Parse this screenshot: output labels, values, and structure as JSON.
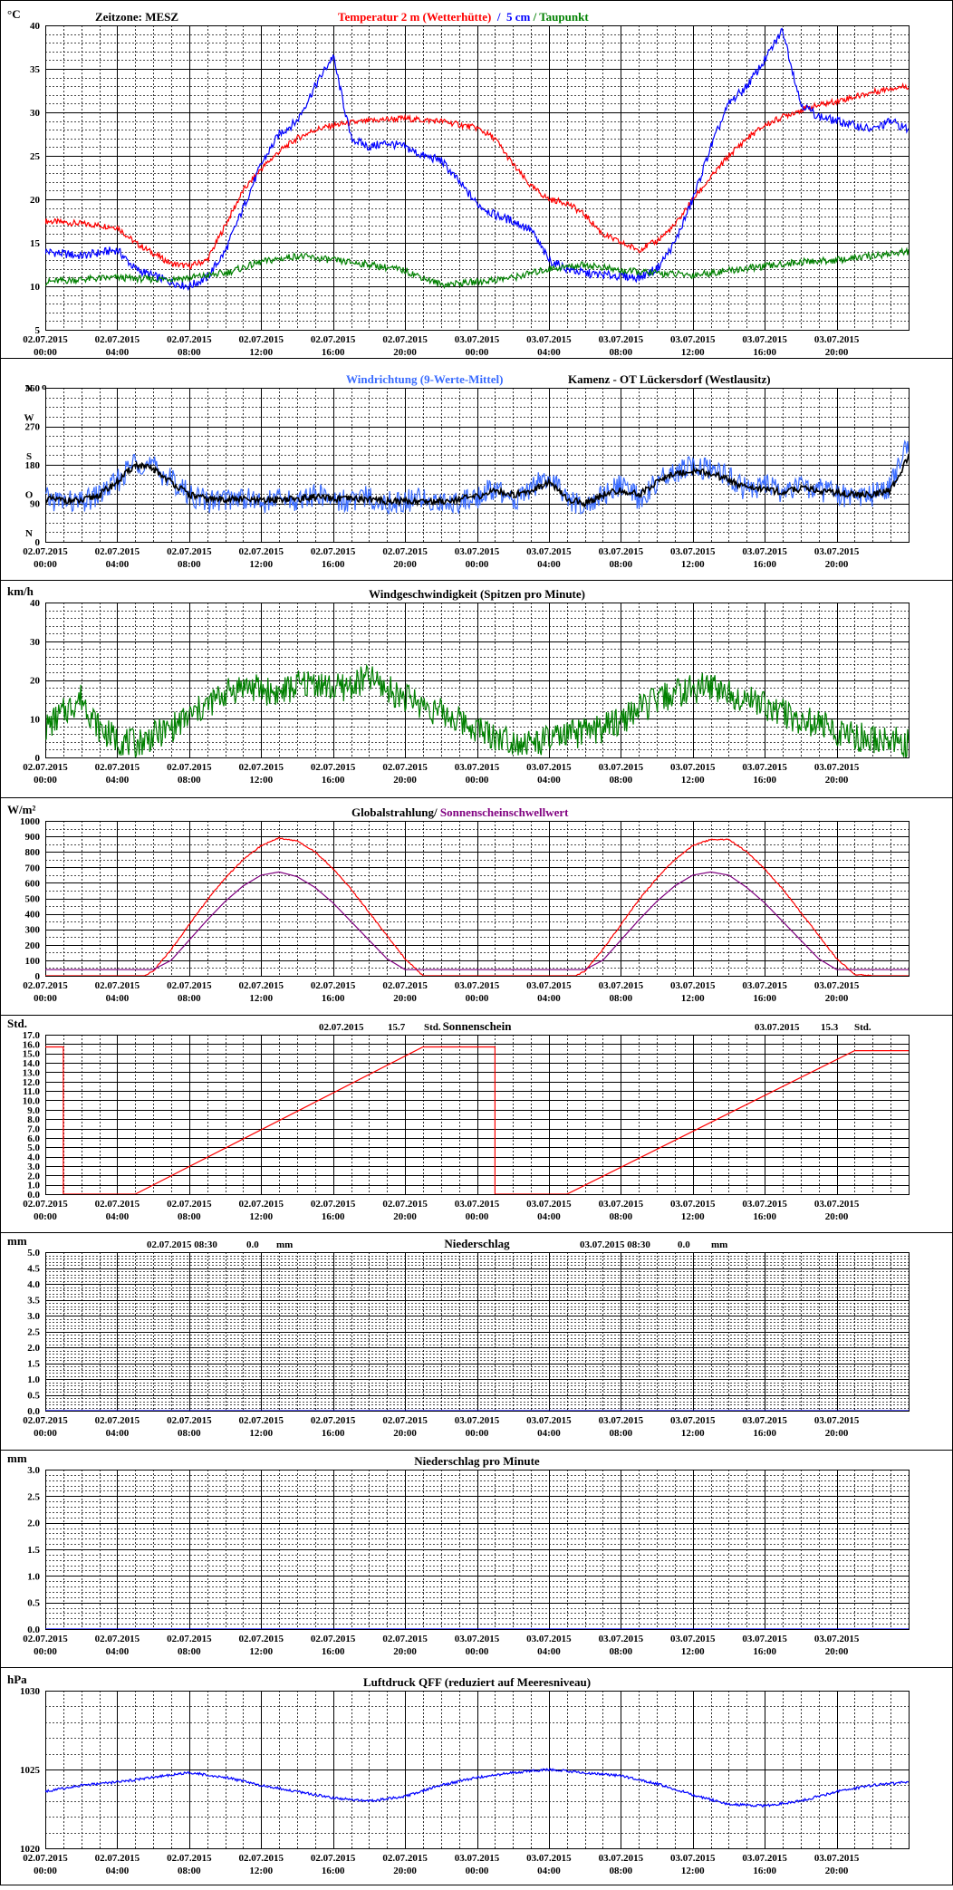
{
  "x_ticks": [
    [
      "02.07.2015",
      "00:00"
    ],
    [
      "02.07.2015",
      "04:00"
    ],
    [
      "02.07.2015",
      "08:00"
    ],
    [
      "02.07.2015",
      "12:00"
    ],
    [
      "02.07.2015",
      "16:00"
    ],
    [
      "02.07.2015",
      "20:00"
    ],
    [
      "03.07.2015",
      "00:00"
    ],
    [
      "03.07.2015",
      "04:00"
    ],
    [
      "03.07.2015",
      "08:00"
    ],
    [
      "03.07.2015",
      "12:00"
    ],
    [
      "03.07.2015",
      "16:00"
    ],
    [
      "03.07.2015",
      "20:00"
    ]
  ],
  "x_range_hours": [
    0,
    48
  ],
  "colors": {
    "red": "#ff0000",
    "blue": "#0000ff",
    "lightblue": "#3a6cff",
    "green": "#008000",
    "purple": "#800080",
    "black": "#000000"
  },
  "chart_data": [
    {
      "id": "temperature",
      "type": "line",
      "ylabel": "°C",
      "ylim": [
        5,
        40
      ],
      "yticks": [
        "5",
        "10",
        "15",
        "20",
        "25",
        "30",
        "35",
        "40"
      ],
      "timezone_label": "Zeitzone: MESZ",
      "title_parts": [
        {
          "text": "Temperatur 2 m (Wetterhütte)",
          "color": "#ff0000"
        },
        {
          "text": "  /  ",
          "color": "#0000ff"
        },
        {
          "text": "5 cm",
          "color": "#0000ff"
        },
        {
          "text": " / ",
          "color": "#008000"
        },
        {
          "text": "Taupunkt",
          "color": "#008000"
        }
      ],
      "series": [
        {
          "name": "Temperatur 2 m (Wetterhütte)",
          "color": "#ff0000",
          "x": [
            0,
            2,
            4,
            5,
            6,
            7,
            8,
            9,
            10,
            11,
            12,
            13,
            14,
            15,
            16,
            17,
            18,
            19,
            20,
            21,
            22,
            23,
            24,
            25,
            26,
            27,
            28,
            29,
            30,
            31,
            32,
            33,
            34,
            35,
            36,
            37,
            38,
            39,
            40,
            41,
            42,
            43,
            44,
            45,
            46,
            47,
            48
          ],
          "y": [
            17.5,
            17.2,
            16.8,
            15.0,
            13.8,
            12.6,
            12.3,
            13.0,
            17.0,
            21.0,
            23.5,
            25.5,
            27.0,
            28.0,
            28.5,
            28.8,
            29.0,
            29.2,
            29.3,
            29.1,
            29.0,
            28.6,
            28.2,
            27.0,
            24.0,
            21.5,
            20.0,
            19.6,
            18.2,
            16.0,
            15.0,
            14.2,
            15.2,
            17.0,
            20.0,
            22.5,
            25.0,
            27.0,
            28.5,
            29.5,
            30.3,
            30.8,
            31.3,
            31.8,
            32.3,
            32.8,
            33.0
          ]
        },
        {
          "name": "5 cm",
          "color": "#0000ff",
          "x": [
            0,
            2,
            4,
            5,
            6,
            7,
            8,
            9,
            10,
            11,
            12,
            13,
            14,
            15,
            16,
            17,
            18,
            19,
            20,
            21,
            22,
            23,
            24,
            25,
            26,
            27,
            28,
            29,
            30,
            31,
            32,
            33,
            34,
            35,
            36,
            37,
            38,
            39,
            40,
            41,
            42,
            43,
            44,
            45,
            46,
            47,
            48
          ],
          "y": [
            14.0,
            13.5,
            14.2,
            12.0,
            11.2,
            10.5,
            10.0,
            11.0,
            14.0,
            19.0,
            24.0,
            27.5,
            29.0,
            33.0,
            36.5,
            27.0,
            26.0,
            26.5,
            26.0,
            25.0,
            24.5,
            22.0,
            19.5,
            18.2,
            17.5,
            16.5,
            13.0,
            12.0,
            11.5,
            11.3,
            11.2,
            11.0,
            12.0,
            15.0,
            20.0,
            26.0,
            31.0,
            33.0,
            36.0,
            39.5,
            31.0,
            29.5,
            29.0,
            28.5,
            28.0,
            29.0,
            28.0
          ]
        },
        {
          "name": "Taupunkt",
          "color": "#008000",
          "x": [
            0,
            2,
            4,
            6,
            8,
            10,
            12,
            14,
            16,
            18,
            20,
            22,
            24,
            26,
            28,
            30,
            32,
            34,
            36,
            38,
            40,
            42,
            44,
            46,
            48
          ],
          "y": [
            10.5,
            10.8,
            11.0,
            10.8,
            11.0,
            11.5,
            12.8,
            13.5,
            13.0,
            12.5,
            11.8,
            10.2,
            10.5,
            11.0,
            12.0,
            12.5,
            11.8,
            11.5,
            11.3,
            11.8,
            12.3,
            12.8,
            13.0,
            13.5,
            14.0
          ]
        }
      ]
    },
    {
      "id": "wind_direction",
      "type": "line",
      "ylim": [
        0,
        360
      ],
      "yticks": [
        "0",
        "90",
        "180",
        "270",
        "360"
      ],
      "compass": [
        "N",
        "O",
        "S",
        "W",
        "N"
      ],
      "compass_suffix": "o",
      "title_parts": [
        {
          "text": "Windrichtung",
          "color": "#3a6cff"
        },
        {
          "text": " (9-Werte-Mittel)",
          "color": "#3a6cff"
        }
      ],
      "station": "Kamenz - OT Lückersdorf (Westlausitz)",
      "series": [
        {
          "name": "Windrichtung",
          "color": "#3a6cff",
          "x": [
            0,
            2,
            3,
            4,
            5,
            6,
            7,
            8,
            9,
            10,
            11,
            12,
            13,
            14,
            15,
            16,
            17,
            18,
            19,
            20,
            21,
            22,
            23,
            24,
            25,
            26,
            27,
            28,
            29,
            30,
            31,
            32,
            33,
            34,
            35,
            36,
            37,
            38,
            39,
            40,
            41,
            42,
            43,
            44,
            45,
            46,
            47,
            48
          ],
          "y": [
            100,
            90,
            110,
            140,
            190,
            175,
            145,
            110,
            95,
            100,
            105,
            90,
            100,
            95,
            110,
            100,
            95,
            105,
            90,
            95,
            100,
            90,
            95,
            105,
            125,
            90,
            130,
            150,
            100,
            80,
            110,
            130,
            100,
            140,
            160,
            175,
            165,
            150,
            120,
            130,
            115,
            130,
            120,
            110,
            100,
            110,
            130,
            230
          ]
        },
        {
          "name": "9-Werte-Mittel",
          "color": "#000000",
          "x": [
            0,
            2,
            3,
            4,
            5,
            6,
            7,
            8,
            9,
            10,
            11,
            12,
            13,
            14,
            15,
            16,
            17,
            18,
            19,
            20,
            21,
            22,
            23,
            24,
            25,
            26,
            27,
            28,
            29,
            30,
            31,
            32,
            33,
            34,
            35,
            36,
            37,
            38,
            39,
            40,
            41,
            42,
            43,
            44,
            45,
            46,
            47,
            48
          ],
          "y": [
            100,
            95,
            110,
            140,
            180,
            170,
            140,
            110,
            100,
            100,
            100,
            95,
            100,
            100,
            105,
            100,
            100,
            100,
            95,
            95,
            95,
            95,
            100,
            105,
            120,
            110,
            120,
            140,
            100,
            90,
            110,
            120,
            110,
            140,
            160,
            165,
            160,
            145,
            125,
            125,
            115,
            125,
            120,
            115,
            110,
            110,
            120,
            200
          ]
        }
      ]
    },
    {
      "id": "wind_speed",
      "type": "line",
      "ylabel": "km/h",
      "ylim": [
        0,
        40
      ],
      "yticks": [
        "0",
        "10",
        "20",
        "30",
        "40"
      ],
      "title": "Windgeschwindigkeit (Spitzen pro Minute)",
      "series": [
        {
          "name": "Windgeschwindigkeit",
          "color": "#008000",
          "x": [
            0,
            1,
            2,
            3,
            4,
            5,
            6,
            7,
            8,
            9,
            10,
            11,
            12,
            13,
            14,
            15,
            16,
            17,
            18,
            19,
            20,
            21,
            22,
            23,
            24,
            25,
            26,
            27,
            28,
            29,
            30,
            31,
            32,
            33,
            34,
            35,
            36,
            37,
            38,
            39,
            40,
            41,
            42,
            43,
            44,
            45,
            46,
            47,
            48
          ],
          "y": [
            6,
            10,
            14,
            6,
            3,
            2,
            4,
            6,
            9,
            12,
            15,
            17,
            16,
            15,
            17,
            18,
            16,
            17,
            19,
            16,
            14,
            12,
            10,
            8,
            6,
            4,
            3,
            2,
            3,
            4,
            5,
            6,
            8,
            11,
            13,
            15,
            16,
            17,
            15,
            14,
            12,
            10,
            8,
            7,
            5,
            4,
            3,
            3,
            2
          ]
        }
      ]
    },
    {
      "id": "radiation",
      "type": "line",
      "ylabel": "W/m²",
      "ylim": [
        0,
        1000
      ],
      "yticks": [
        "0",
        "100",
        "200",
        "300",
        "400",
        "500",
        "600",
        "700",
        "800",
        "900",
        "1000"
      ],
      "title_parts": [
        {
          "text": "Globalstrahlung",
          "color": "#000000"
        },
        {
          "text": "/ ",
          "color": "#000000"
        },
        {
          "text": "Sonnenscheinschwellwert",
          "color": "#800080"
        }
      ],
      "series": [
        {
          "name": "Globalstrahlung",
          "color": "#ff0000",
          "x": [
            0,
            5.5,
            6,
            7,
            8,
            9,
            10,
            11,
            12,
            13,
            14,
            15,
            16,
            17,
            18,
            19,
            20,
            21,
            22,
            29.5,
            30,
            31,
            32,
            33,
            34,
            35,
            36,
            37,
            38,
            39,
            40,
            41,
            42,
            43,
            44,
            45,
            46,
            48
          ],
          "y": [
            0,
            0,
            30,
            170,
            330,
            490,
            630,
            750,
            840,
            890,
            870,
            800,
            690,
            560,
            410,
            260,
            110,
            0,
            0,
            0,
            30,
            170,
            330,
            490,
            630,
            750,
            840,
            880,
            880,
            800,
            690,
            560,
            410,
            260,
            110,
            10,
            0,
            0
          ]
        },
        {
          "name": "Sonnenscheinschwellwert",
          "color": "#800080",
          "x": [
            0,
            6,
            7,
            8,
            9,
            10,
            11,
            12,
            13,
            14,
            15,
            16,
            17,
            18,
            19,
            20,
            21,
            22,
            30,
            31,
            32,
            33,
            34,
            35,
            36,
            37,
            38,
            39,
            40,
            41,
            42,
            43,
            44,
            45,
            48
          ],
          "y": [
            40,
            40,
            100,
            230,
            360,
            480,
            580,
            650,
            670,
            640,
            570,
            470,
            350,
            230,
            110,
            40,
            40,
            40,
            40,
            100,
            230,
            360,
            480,
            580,
            650,
            670,
            650,
            570,
            470,
            350,
            230,
            110,
            40,
            40,
            40
          ]
        }
      ]
    },
    {
      "id": "sunshine",
      "type": "line",
      "ylabel": "Std.",
      "ylim": [
        0,
        17
      ],
      "yticks": [
        "0.0",
        "1.0",
        "2.0",
        "3.0",
        "4.0",
        "5.0",
        "6.0",
        "7.0",
        "8.0",
        "9.0",
        "10.0",
        "11.0",
        "12.0",
        "13.0",
        "14.0",
        "15.0",
        "16.0",
        "17.0"
      ],
      "title": "Sonnenschein",
      "annotations": [
        {
          "date": "02.07.2015",
          "value": "15.7",
          "unit": "Std."
        },
        {
          "date": "03.07.2015",
          "value": "15.3",
          "unit": "Std."
        }
      ],
      "series": [
        {
          "name": "Sonnenschein",
          "color": "#ff0000",
          "x": [
            0,
            1,
            1,
            5,
            21,
            25,
            25,
            29,
            45,
            48
          ],
          "y": [
            15.7,
            15.7,
            0,
            0,
            15.7,
            15.7,
            0,
            0,
            15.3,
            15.3
          ]
        }
      ]
    },
    {
      "id": "precip",
      "type": "line",
      "ylabel": "mm",
      "ylim": [
        0,
        5
      ],
      "yticks": [
        "0.0",
        "0.5",
        "1.0",
        "1.5",
        "2.0",
        "2.5",
        "3.0",
        "3.5",
        "4.0",
        "4.5",
        "5.0"
      ],
      "title": "Niederschlag",
      "annotations": [
        {
          "date": "02.07.2015 08:30",
          "value": "0.0",
          "unit": "mm"
        },
        {
          "date": "03.07.2015 08:30",
          "value": "0.0",
          "unit": "mm"
        }
      ],
      "series": [
        {
          "name": "Niederschlag",
          "color": "#0000ff",
          "x": [
            0,
            48
          ],
          "y": [
            0,
            0
          ]
        }
      ]
    },
    {
      "id": "precip_min",
      "type": "line",
      "ylabel": "mm",
      "ylim": [
        0,
        3
      ],
      "yticks": [
        "0.0",
        "0.5",
        "1.0",
        "1.5",
        "2.0",
        "2.5",
        "3.0"
      ],
      "title": "Niederschlag pro Minute",
      "series": [
        {
          "name": "Niederschlag pro Minute",
          "color": "#0000ff",
          "x": [
            0,
            48
          ],
          "y": [
            0,
            0
          ]
        }
      ]
    },
    {
      "id": "pressure",
      "type": "line",
      "ylabel": "hPa",
      "ylim": [
        1020,
        1030
      ],
      "yticks": [
        "1020",
        "1025",
        "1030"
      ],
      "title": "Luftdruck QFF (reduziert auf Meeresniveau)",
      "series": [
        {
          "name": "Luftdruck QFF",
          "color": "#0000ff",
          "x": [
            0,
            2,
            4,
            6,
            8,
            10,
            12,
            14,
            16,
            18,
            20,
            22,
            24,
            26,
            28,
            30,
            32,
            34,
            36,
            38,
            40,
            42,
            44,
            46,
            48
          ],
          "y": [
            1023.6,
            1024.0,
            1024.2,
            1024.5,
            1024.8,
            1024.5,
            1024.0,
            1023.6,
            1023.2,
            1023.0,
            1023.3,
            1024.0,
            1024.5,
            1024.8,
            1025.0,
            1024.8,
            1024.6,
            1024.1,
            1023.4,
            1022.8,
            1022.7,
            1023.0,
            1023.6,
            1024.0,
            1024.2
          ]
        }
      ]
    }
  ]
}
